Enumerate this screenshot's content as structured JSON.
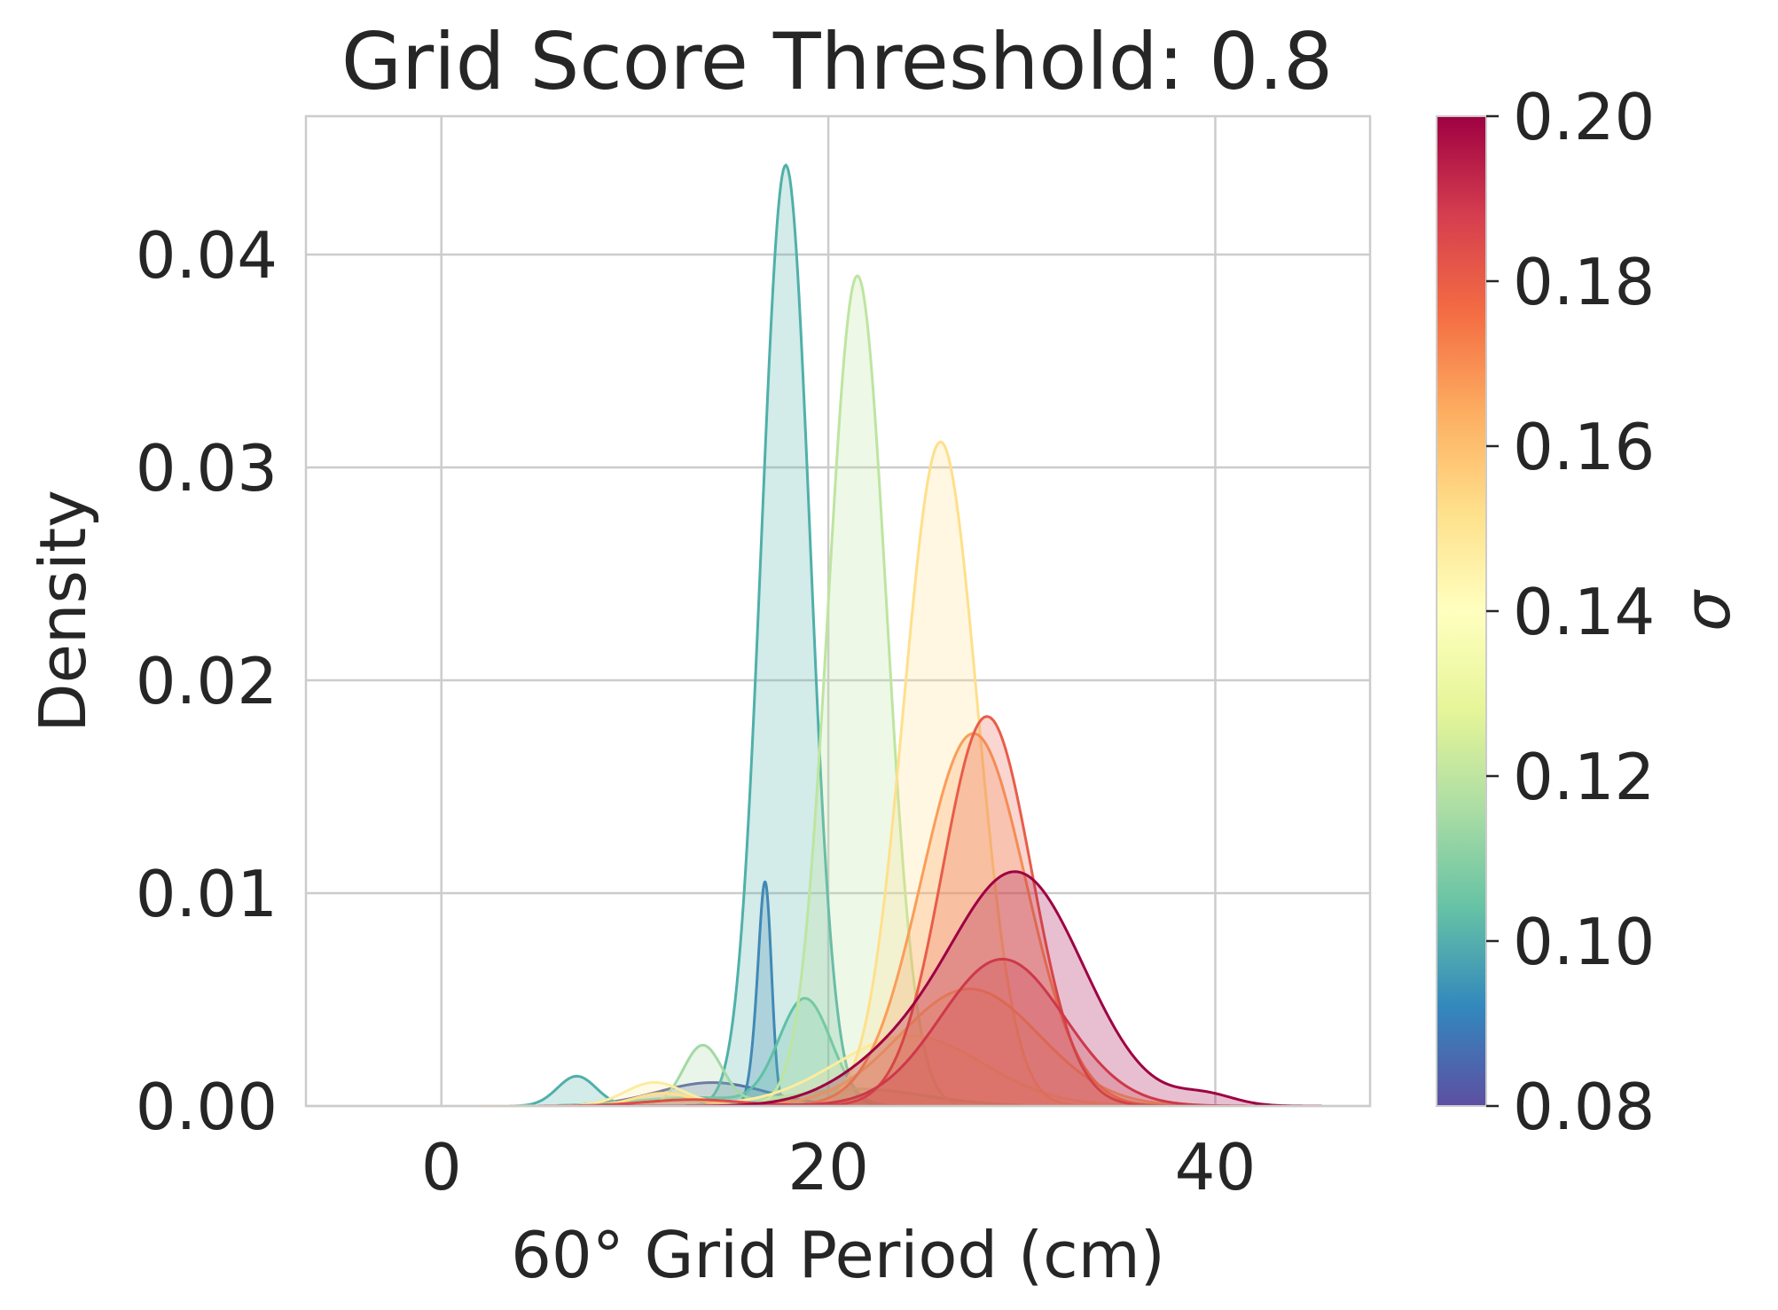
{
  "chart_data": {
    "type": "area",
    "title": "Grid Score Threshold: 0.8",
    "xlabel": "60° Grid Period (cm)",
    "ylabel": "Density",
    "xlim": [
      -7,
      48
    ],
    "ylim": [
      0,
      0.0465
    ],
    "xticks": [
      0,
      20,
      40
    ],
    "xtick_labels": [
      "0",
      "20",
      "40"
    ],
    "yticks": [
      0,
      0.01,
      0.02,
      0.03,
      0.04
    ],
    "ytick_labels": [
      "0.00",
      "0.01",
      "0.02",
      "0.03",
      "0.04"
    ],
    "grid": true,
    "colorbar": {
      "label": "σ",
      "range": [
        0.08,
        0.2
      ],
      "ticks": [
        0.08,
        0.1,
        0.12,
        0.14,
        0.16,
        0.18,
        0.2
      ],
      "tick_labels": [
        "0.08",
        "0.10",
        "0.12",
        "0.14",
        "0.16",
        "0.18",
        "0.20"
      ],
      "colormap_stops": [
        "#5e4fa2",
        "#3288bd",
        "#66c2a5",
        "#abdda4",
        "#e6f598",
        "#ffffbf",
        "#fee08b",
        "#fdae61",
        "#f46d43",
        "#d53e4f",
        "#9e0142"
      ]
    },
    "series": [
      {
        "sigma": 0.085,
        "color": "#5c5ca6",
        "components": [
          {
            "mean": 14,
            "sd": 2.8,
            "peak": 0.0011
          }
        ],
        "range": [
          6.5,
          21
        ]
      },
      {
        "sigma": 0.095,
        "color": "#3b7dba",
        "components": [
          {
            "mean": 16.8,
            "sd": 0.3,
            "peak": 0.0069
          },
          {
            "mean": 16.5,
            "sd": 0.4,
            "peak": 0.0045
          }
        ],
        "range": [
          15,
          18.5
        ]
      },
      {
        "sigma": 0.1,
        "color": "#4fb0a9",
        "components": [
          {
            "mean": 17.8,
            "sd": 1.25,
            "peak": 0.0442
          },
          {
            "mean": 7,
            "sd": 1.0,
            "peak": 0.0014
          }
        ],
        "range": [
          3.5,
          25
        ]
      },
      {
        "sigma": 0.105,
        "color": "#5ec1a4",
        "components": [
          {
            "mean": 18.8,
            "sd": 1.35,
            "peak": 0.005
          },
          {
            "mean": 13,
            "sd": 3,
            "peak": 0.0004
          }
        ],
        "range": [
          6,
          28
        ]
      },
      {
        "sigma": 0.115,
        "color": "#a3d9a4",
        "components": [
          {
            "mean": 13.5,
            "sd": 1.0,
            "peak": 0.0028
          },
          {
            "mean": 21.5,
            "sd": 3.5,
            "peak": 0.0008
          }
        ],
        "range": [
          5,
          30
        ]
      },
      {
        "sigma": 0.12,
        "color": "#bde5a0",
        "components": [
          {
            "mean": 21.5,
            "sd": 1.5,
            "peak": 0.039
          }
        ],
        "range": [
          13,
          31
        ]
      },
      {
        "sigma": 0.145,
        "color": "#fcec9f",
        "components": [
          {
            "mean": 24.2,
            "sd": 3.8,
            "peak": 0.0033
          },
          {
            "mean": 11,
            "sd": 1.5,
            "peak": 0.0011
          }
        ],
        "range": [
          3,
          40
        ]
      },
      {
        "sigma": 0.15,
        "color": "#fee08b",
        "components": [
          {
            "mean": 25.8,
            "sd": 1.9,
            "peak": 0.0312
          },
          {
            "mean": 11.5,
            "sd": 1.5,
            "peak": 0.0006
          }
        ],
        "range": [
          2,
          36
        ]
      },
      {
        "sigma": 0.16,
        "color": "#fec36d",
        "components": [
          {
            "mean": 27.3,
            "sd": 3.6,
            "peak": 0.0055
          }
        ],
        "range": [
          10,
          43
        ]
      },
      {
        "sigma": 0.17,
        "color": "#fa9d59",
        "components": [
          {
            "mean": 27.5,
            "sd": 2.7,
            "peak": 0.0175
          }
        ],
        "range": [
          10,
          44
        ]
      },
      {
        "sigma": 0.18,
        "color": "#e85d49",
        "components": [
          {
            "mean": 28.2,
            "sd": 2.3,
            "peak": 0.0183
          }
        ],
        "range": [
          12,
          43
        ]
      },
      {
        "sigma": 0.185,
        "color": "#dd4c4c",
        "components": [
          {
            "mean": 29,
            "sd": 3.2,
            "peak": 0.0069
          },
          {
            "mean": 13,
            "sd": 2.5,
            "peak": 0.0003
          }
        ],
        "range": [
          5,
          44
        ]
      },
      {
        "sigma": 0.2,
        "color": "#9e0142",
        "components": [
          {
            "mean": 29.8,
            "sd": 3.4,
            "peak": 0.0108
          },
          {
            "mean": 39.5,
            "sd": 1.5,
            "peak": 0.0005
          },
          {
            "mean": 23.5,
            "sd": 3,
            "peak": 0.0018
          }
        ],
        "range": [
          8,
          45.5
        ]
      }
    ]
  }
}
